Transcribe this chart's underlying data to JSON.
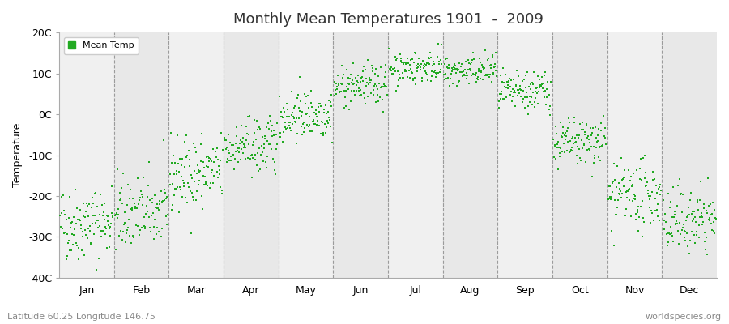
{
  "title": "Monthly Mean Temperatures 1901  -  2009",
  "ylabel": "Temperature",
  "xlabel_labels": [
    "Jan",
    "Feb",
    "Mar",
    "Apr",
    "May",
    "Jun",
    "Jul",
    "Aug",
    "Sep",
    "Oct",
    "Nov",
    "Dec"
  ],
  "ylim": [
    -40,
    20
  ],
  "yticks": [
    -40,
    -30,
    -20,
    -10,
    0,
    10,
    20
  ],
  "ytick_labels": [
    "-40C",
    "-30C",
    "-20C",
    "-10C",
    "0C",
    "10C",
    "20C"
  ],
  "dot_color": "#22aa22",
  "dot_size": 3,
  "background_color": "#ffffff",
  "plot_bg_color": "#f0f0f0",
  "stripe_color": "#e8e8e8",
  "legend_label": "Mean Temp",
  "subtitle": "Latitude 60.25 Longitude 146.75",
  "watermark": "worldspecies.org",
  "n_years": 109,
  "start_year": 1901,
  "end_year": 2009,
  "monthly_means": [
    -26.5,
    -24.0,
    -14.5,
    -8.0,
    0.0,
    7.0,
    11.5,
    10.5,
    5.5,
    -7.0,
    -20.0,
    -26.0
  ],
  "monthly_stds": [
    4.5,
    4.5,
    4.5,
    3.5,
    3.0,
    2.5,
    2.0,
    2.0,
    2.5,
    3.0,
    4.0,
    4.0
  ]
}
